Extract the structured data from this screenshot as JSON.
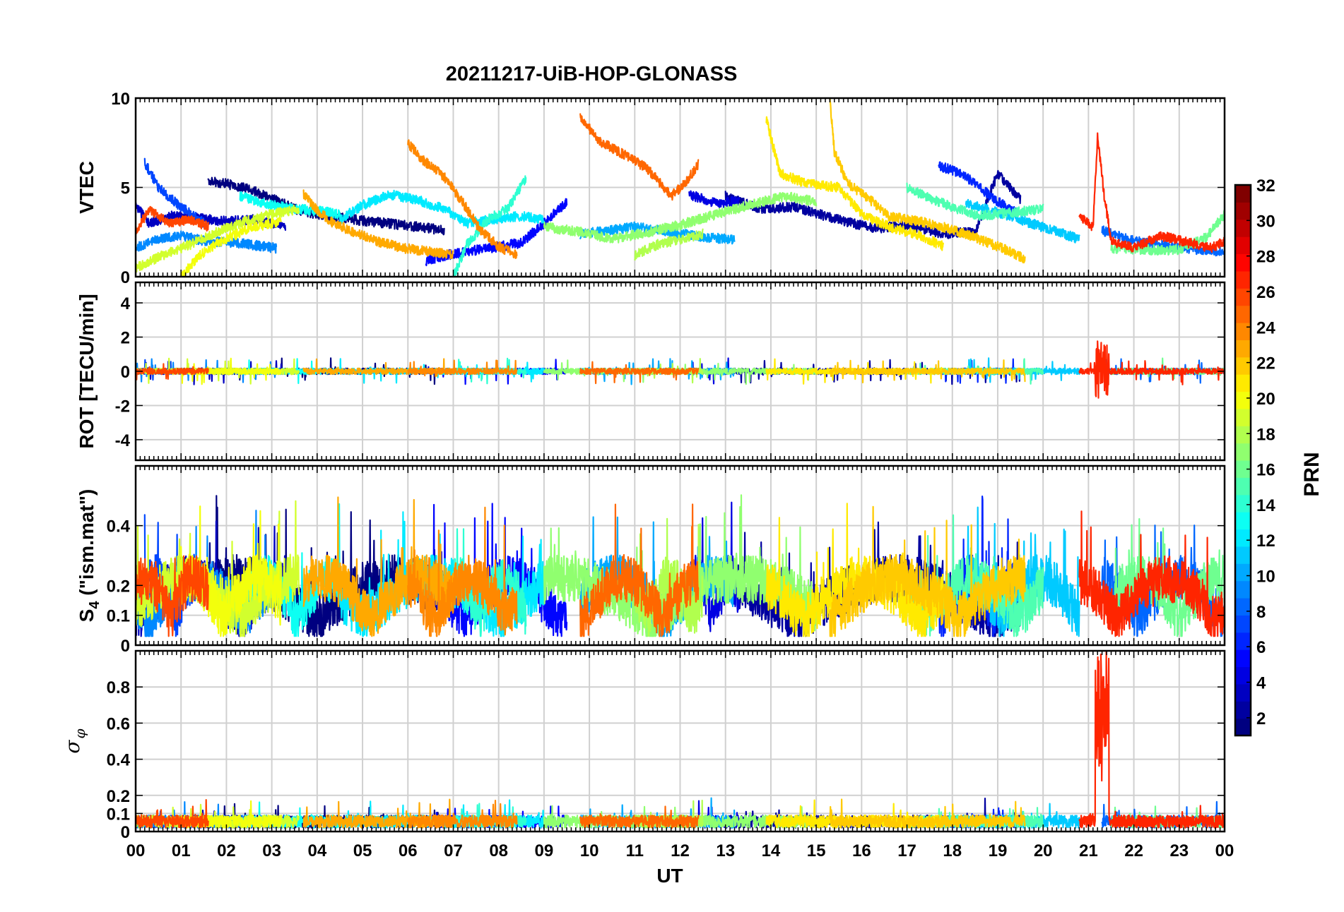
{
  "chart_data": {
    "type": "line",
    "title": "20211217-UiB-HOP-GLONASS",
    "xlabel": "UT",
    "x_ticks": [
      "00",
      "01",
      "02",
      "03",
      "04",
      "05",
      "06",
      "07",
      "08",
      "09",
      "10",
      "11",
      "12",
      "13",
      "14",
      "15",
      "16",
      "17",
      "18",
      "19",
      "20",
      "21",
      "22",
      "23",
      "00"
    ],
    "xlim": [
      0,
      24
    ],
    "grid": true,
    "panels": [
      {
        "ylabel": "VTEC",
        "ylim": [
          0,
          10
        ],
        "yticks": [
          0,
          5,
          10
        ]
      },
      {
        "ylabel": "ROT [TECU/min]",
        "ylim": [
          -5.2,
          5.2
        ],
        "yticks": [
          -4,
          -2,
          0,
          2,
          4
        ]
      },
      {
        "ylabel_main": "S",
        "ylabel_sub": "4",
        "ylabel_rest": " (\"ism.mat\")",
        "ylim": [
          0,
          0.6
        ],
        "yticks": [
          0,
          0.1,
          0.2,
          0.4
        ]
      },
      {
        "ylabel_symbol": "σ",
        "ylabel_sub": "φ",
        "ylim": [
          0,
          1
        ],
        "yticks": [
          0,
          0.1,
          0.2,
          0.4,
          0.6,
          0.8
        ]
      }
    ],
    "colorbar": {
      "label": "PRN",
      "range": [
        1,
        32
      ],
      "ticks": [
        2,
        4,
        6,
        8,
        10,
        12,
        14,
        16,
        18,
        20,
        22,
        24,
        26,
        28,
        30,
        32
      ],
      "colormap": "jet",
      "placement": "right"
    },
    "series": [
      {
        "prn": 1,
        "vtec": [
          [
            1.6,
            5.4
          ],
          [
            2.0,
            5.2
          ],
          [
            2.5,
            4.9
          ],
          [
            3.0,
            4.4
          ],
          [
            3.5,
            3.8
          ],
          [
            4.0,
            3.5
          ],
          [
            4.8,
            3.2
          ],
          [
            5.5,
            3.0
          ],
          [
            6.2,
            2.8
          ],
          [
            6.8,
            2.6
          ]
        ]
      },
      {
        "prn": 2,
        "vtec": [
          [
            13.0,
            4.5
          ],
          [
            13.8,
            3.8
          ],
          [
            14.5,
            3.9
          ],
          [
            15.2,
            3.4
          ],
          [
            15.8,
            3.0
          ],
          [
            16.3,
            2.7
          ],
          [
            17.0,
            2.9
          ],
          [
            17.8,
            2.4
          ],
          [
            18.5,
            2.5
          ],
          [
            19.0,
            5.8
          ],
          [
            19.5,
            4.3
          ]
        ]
      },
      {
        "prn": 3,
        "vtec": [
          [
            0.0,
            4.0
          ],
          [
            0.3,
            3.0
          ],
          [
            0.8,
            3.4
          ],
          [
            1.3,
            3.3
          ],
          [
            2.0,
            3.1
          ],
          [
            2.6,
            3.2
          ],
          [
            3.3,
            2.8
          ]
        ]
      },
      {
        "prn": 4,
        "vtec": [
          [
            12.2,
            4.6
          ],
          [
            12.8,
            4.1
          ],
          [
            13.3,
            4.3
          ]
        ]
      },
      {
        "prn": 5,
        "vtec": [
          [
            6.4,
            0.9
          ],
          [
            7.0,
            1.3
          ],
          [
            7.8,
            1.6
          ],
          [
            8.5,
            1.9
          ],
          [
            9.0,
            3.0
          ],
          [
            9.5,
            4.2
          ]
        ]
      },
      {
        "prn": 6,
        "vtec": [
          [
            17.7,
            6.2
          ],
          [
            18.2,
            5.8
          ],
          [
            18.6,
            5.0
          ],
          [
            19.0,
            4.2
          ],
          [
            19.4,
            3.6
          ]
        ]
      },
      {
        "prn": 7,
        "vtec": [
          [
            0.2,
            6.4
          ],
          [
            0.5,
            5.0
          ],
          [
            0.9,
            4.1
          ],
          [
            1.5,
            3.0
          ]
        ]
      },
      {
        "prn": 8,
        "vtec": [
          [
            21.3,
            2.6
          ],
          [
            22.0,
            2.0
          ],
          [
            22.8,
            1.7
          ],
          [
            23.5,
            1.5
          ],
          [
            24.0,
            1.4
          ]
        ]
      },
      {
        "prn": 9,
        "vtec": [
          [
            0.0,
            1.6
          ],
          [
            0.5,
            2.1
          ],
          [
            1.0,
            2.3
          ],
          [
            1.5,
            2.0
          ],
          [
            2.2,
            1.9
          ],
          [
            3.1,
            1.6
          ]
        ]
      },
      {
        "prn": 10,
        "vtec": [
          [
            9.8,
            2.4
          ],
          [
            10.5,
            2.6
          ],
          [
            11.0,
            2.8
          ],
          [
            11.8,
            2.5
          ],
          [
            12.5,
            2.2
          ],
          [
            13.2,
            2.1
          ]
        ]
      },
      {
        "prn": 11,
        "vtec": [
          [
            18.3,
            4.1
          ],
          [
            19.0,
            3.6
          ],
          [
            19.6,
            3.1
          ],
          [
            20.2,
            2.6
          ],
          [
            20.8,
            2.1
          ]
        ]
      },
      {
        "prn": 12,
        "vtec": [
          [
            4.5,
            3.2
          ],
          [
            5.0,
            4.0
          ],
          [
            5.6,
            4.6
          ],
          [
            6.2,
            4.3
          ],
          [
            6.8,
            3.8
          ],
          [
            7.3,
            3.0
          ],
          [
            7.8,
            3.2
          ],
          [
            8.5,
            3.4
          ],
          [
            9.0,
            3.2
          ]
        ]
      },
      {
        "prn": 13,
        "vtec": [
          [
            2.3,
            4.5
          ],
          [
            3.0,
            4.0
          ],
          [
            3.5,
            3.8
          ],
          [
            4.0,
            3.7
          ],
          [
            4.5,
            3.5
          ]
        ]
      },
      {
        "prn": 14,
        "vtec": [
          [
            7.0,
            0.0
          ],
          [
            7.3,
            1.8
          ],
          [
            7.8,
            3.3
          ],
          [
            8.2,
            3.8
          ],
          [
            8.6,
            5.5
          ]
        ]
      },
      {
        "prn": 15,
        "vtec": [
          [
            17.0,
            5.0
          ],
          [
            17.5,
            4.4
          ],
          [
            18.0,
            3.9
          ],
          [
            18.6,
            3.4
          ],
          [
            19.3,
            3.6
          ],
          [
            20.0,
            3.8
          ]
        ]
      },
      {
        "prn": 16,
        "vtec": [
          [
            21.5,
            1.6
          ],
          [
            22.2,
            1.5
          ],
          [
            23.0,
            1.5
          ],
          [
            23.6,
            2.2
          ],
          [
            24.0,
            3.5
          ]
        ]
      },
      {
        "prn": 17,
        "vtec": [
          [
            9.0,
            2.8
          ],
          [
            9.8,
            2.5
          ],
          [
            10.5,
            2.1
          ],
          [
            11.3,
            2.5
          ],
          [
            12.0,
            2.9
          ],
          [
            12.8,
            3.5
          ],
          [
            13.5,
            4.0
          ],
          [
            14.3,
            4.5
          ],
          [
            15.0,
            4.2
          ]
        ]
      },
      {
        "prn": 18,
        "vtec": [
          [
            11.0,
            1.2
          ],
          [
            11.5,
            1.8
          ],
          [
            12.0,
            2.1
          ],
          [
            12.5,
            2.4
          ]
        ]
      },
      {
        "prn": 19,
        "vtec": [
          [
            0.0,
            0.5
          ],
          [
            0.6,
            1.2
          ],
          [
            1.2,
            1.8
          ],
          [
            1.8,
            2.5
          ],
          [
            2.4,
            3.1
          ],
          [
            3.0,
            3.5
          ],
          [
            3.6,
            3.8
          ]
        ]
      },
      {
        "prn": 20,
        "vtec": [
          [
            1.0,
            0.0
          ],
          [
            1.4,
            1.2
          ],
          [
            1.9,
            2.0
          ],
          [
            2.5,
            2.7
          ],
          [
            3.2,
            3.1
          ]
        ]
      },
      {
        "prn": 21,
        "vtec": [
          [
            13.9,
            8.8
          ],
          [
            14.2,
            5.8
          ],
          [
            14.8,
            5.2
          ],
          [
            15.5,
            5.0
          ],
          [
            16.0,
            3.5
          ],
          [
            16.6,
            2.8
          ],
          [
            17.3,
            2.3
          ],
          [
            17.8,
            1.7
          ]
        ]
      },
      {
        "prn": 22,
        "vtec": [
          [
            15.3,
            10.0
          ],
          [
            15.4,
            7.0
          ],
          [
            15.7,
            5.2
          ],
          [
            16.1,
            4.5
          ],
          [
            16.6,
            3.4
          ],
          [
            17.3,
            3.1
          ],
          [
            17.9,
            2.7
          ],
          [
            18.5,
            2.2
          ],
          [
            19.1,
            1.6
          ],
          [
            19.6,
            1.0
          ]
        ]
      },
      {
        "prn": 23,
        "vtec": [
          [
            3.7,
            4.6
          ],
          [
            4.0,
            3.7
          ],
          [
            4.3,
            3.1
          ],
          [
            4.8,
            2.5
          ],
          [
            5.3,
            2.0
          ],
          [
            5.9,
            1.6
          ],
          [
            6.5,
            1.4
          ],
          [
            7.0,
            1.2
          ]
        ]
      },
      {
        "prn": 24,
        "vtec": [
          [
            6.0,
            7.5
          ],
          [
            6.3,
            6.6
          ],
          [
            6.8,
            5.6
          ],
          [
            7.2,
            4.2
          ],
          [
            7.6,
            2.6
          ],
          [
            8.0,
            1.7
          ],
          [
            8.4,
            1.2
          ]
        ]
      },
      {
        "prn": 25,
        "vtec": [
          [
            9.8,
            9.0
          ],
          [
            10.2,
            7.6
          ],
          [
            10.8,
            6.8
          ],
          [
            11.3,
            6.0
          ],
          [
            11.8,
            4.5
          ],
          [
            12.1,
            5.2
          ],
          [
            12.4,
            6.3
          ]
        ]
      },
      {
        "prn": 26,
        "vtec": [
          [
            0.0,
            2.5
          ],
          [
            0.3,
            3.8
          ],
          [
            0.7,
            3.0
          ],
          [
            1.2,
            3.2
          ],
          [
            1.6,
            2.8
          ]
        ]
      },
      {
        "prn": 27,
        "vtec": [
          [
            20.8,
            3.4
          ],
          [
            21.1,
            2.8
          ],
          [
            21.2,
            7.8
          ],
          [
            21.35,
            4.5
          ],
          [
            21.5,
            2.0
          ],
          [
            22.0,
            1.6
          ],
          [
            22.6,
            2.3
          ],
          [
            23.2,
            1.9
          ],
          [
            23.7,
            1.6
          ],
          [
            24.0,
            2.0
          ]
        ]
      }
    ]
  }
}
